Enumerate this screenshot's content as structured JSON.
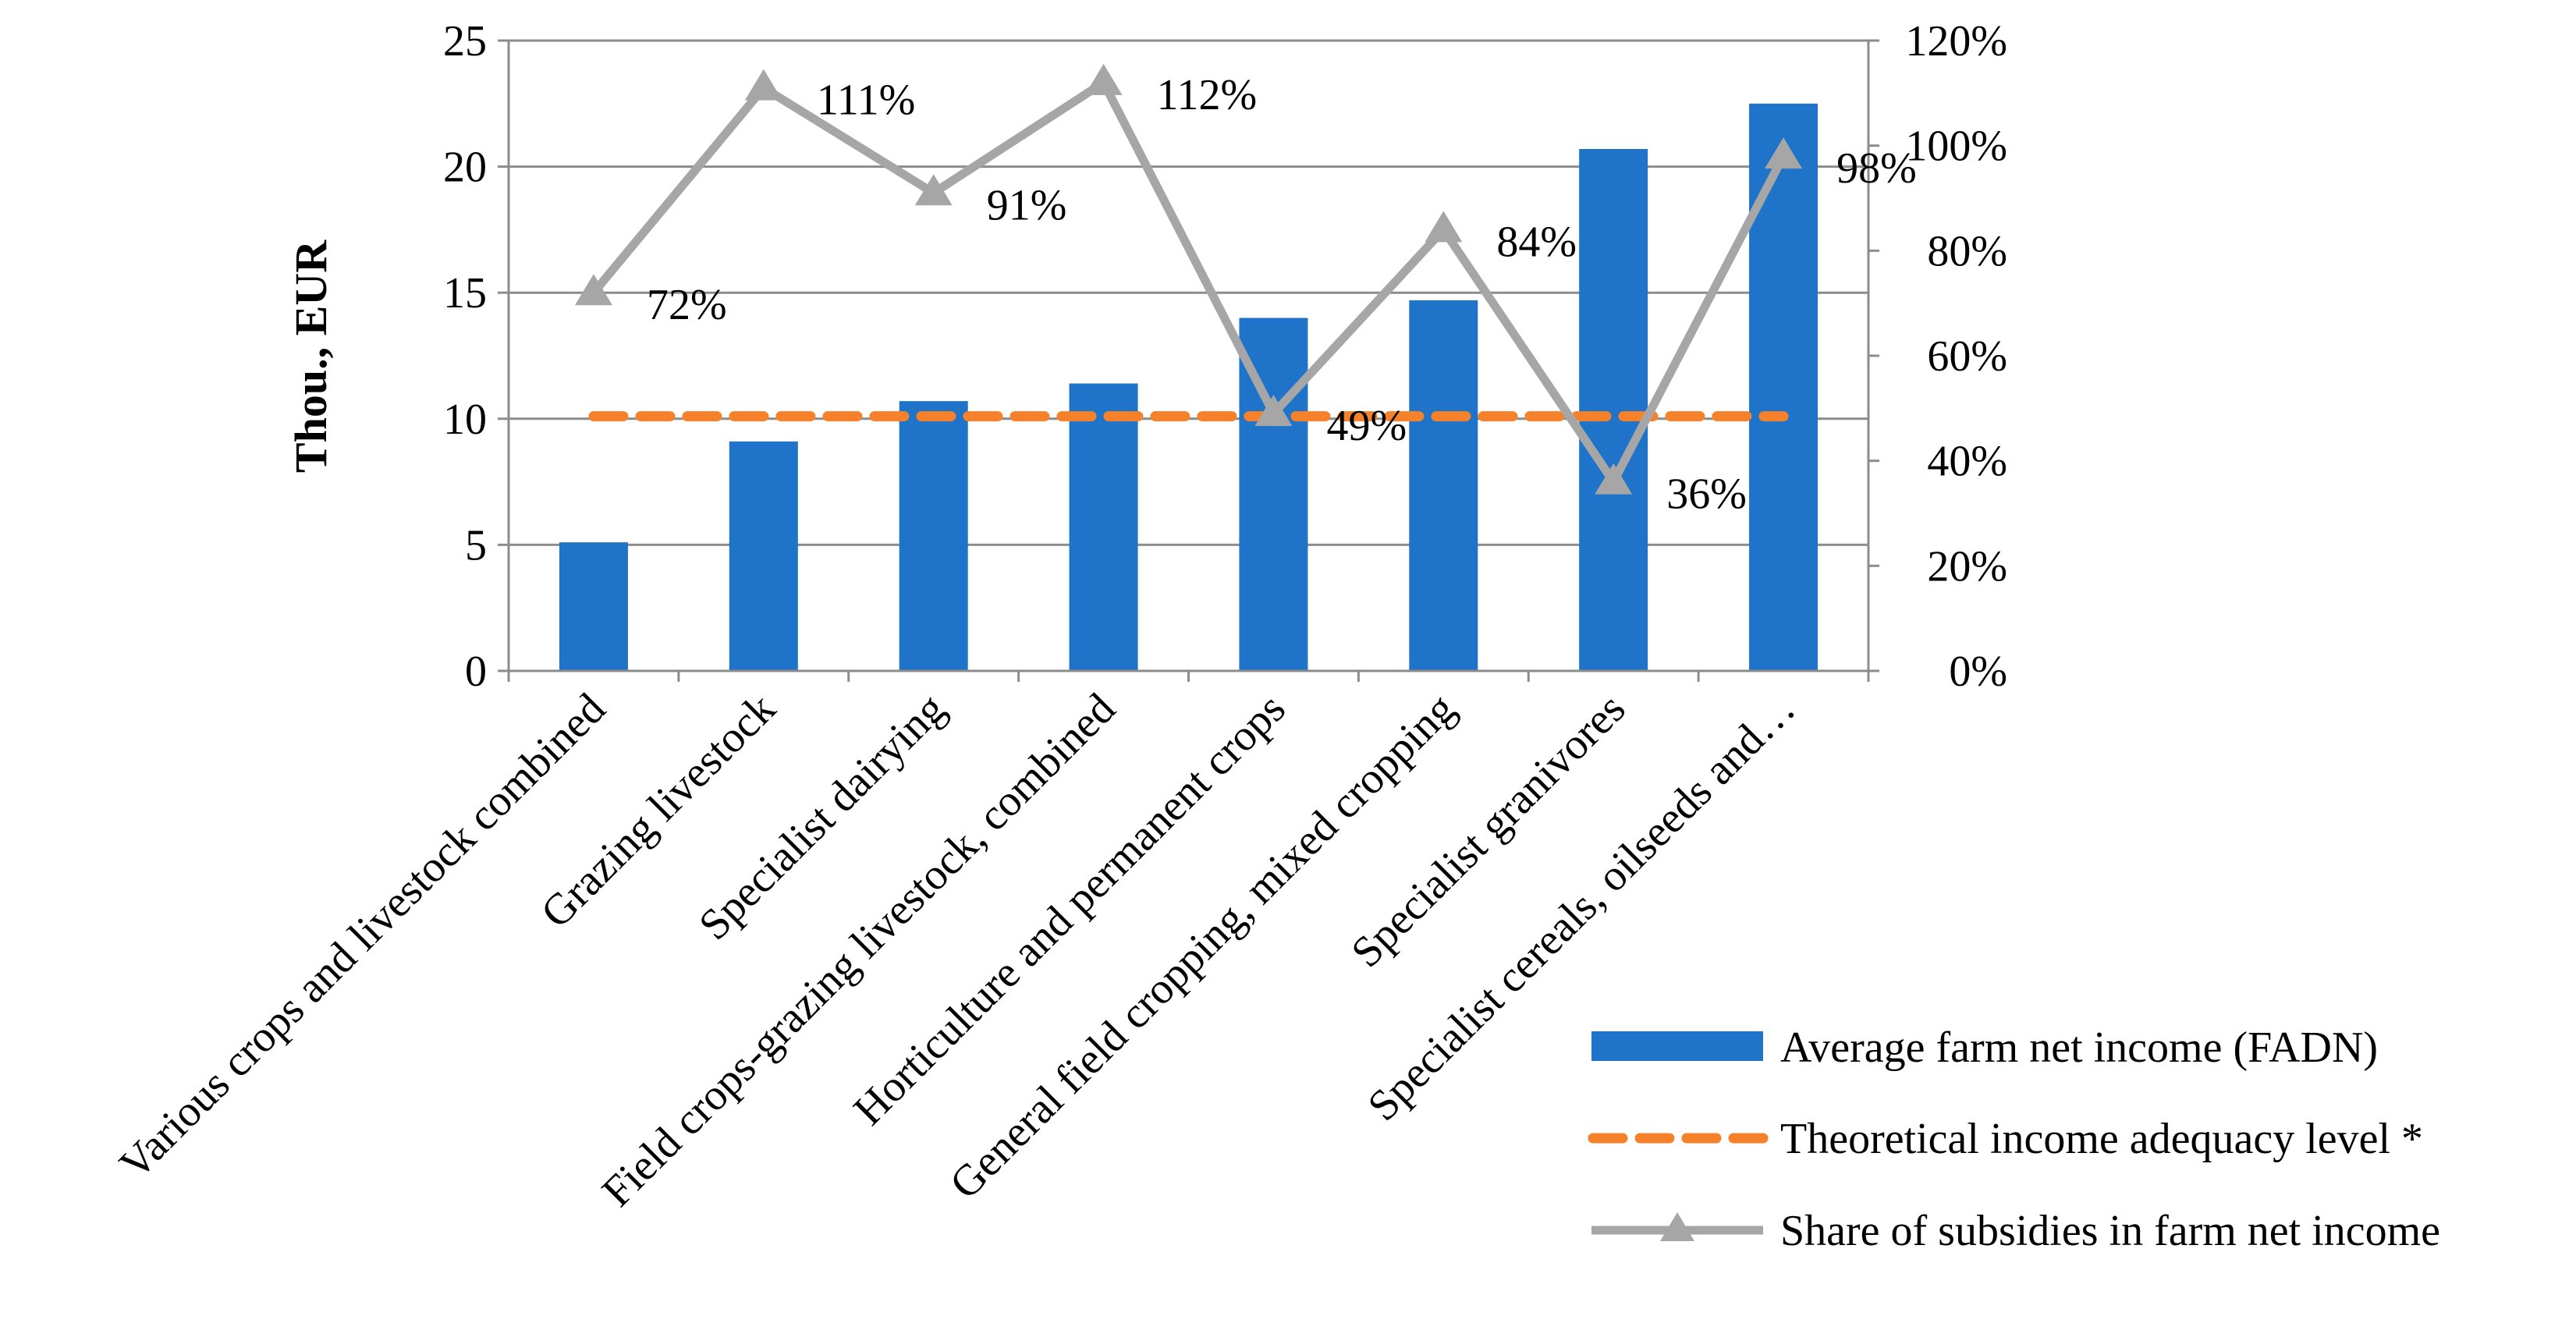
{
  "chart_data": {
    "type": "bar",
    "title": "",
    "ylabel": "Thou., EUR",
    "xlabel": "",
    "ylim": [
      0,
      25
    ],
    "y2lim": [
      0,
      1.2
    ],
    "yticks": [
      "0",
      "5",
      "10",
      "15",
      "20",
      "25"
    ],
    "y2ticks": [
      "0%",
      "20%",
      "40%",
      "60%",
      "80%",
      "100%",
      "120%"
    ],
    "categories": [
      "Various crops and livestock combined",
      "Grazing livestock",
      "Specialist dairying",
      "Field crops-grazing livestock, combined",
      "Horticulture and permanent crops",
      "General field cropping, mixed cropping",
      "Specialist granivores",
      "Specialist cereals, oilseeds and…"
    ],
    "series": [
      {
        "name": "Average farm net income  (FADN)",
        "type": "bar",
        "axis": "left",
        "color": "#1f73c9",
        "values": [
          5.1,
          9.1,
          10.7,
          11.4,
          14.0,
          14.7,
          20.7,
          22.5
        ]
      },
      {
        "name": "Theoretical income adequacy level *",
        "type": "line",
        "style": "dashed",
        "axis": "left",
        "color": "#f5812a",
        "values": [
          10.1,
          10.1,
          10.1,
          10.1,
          10.1,
          10.1,
          10.1,
          10.1
        ]
      },
      {
        "name": "Share of subsidies in farm net income",
        "type": "line",
        "marker": "triangle",
        "axis": "right",
        "color": "#a6a6a6",
        "values": [
          0.72,
          1.11,
          0.91,
          1.12,
          0.49,
          0.84,
          0.36,
          0.98
        ],
        "labels": [
          "72%",
          "111%",
          "91%",
          "112%",
          "49%",
          "84%",
          "36%",
          "98%"
        ]
      }
    ]
  }
}
